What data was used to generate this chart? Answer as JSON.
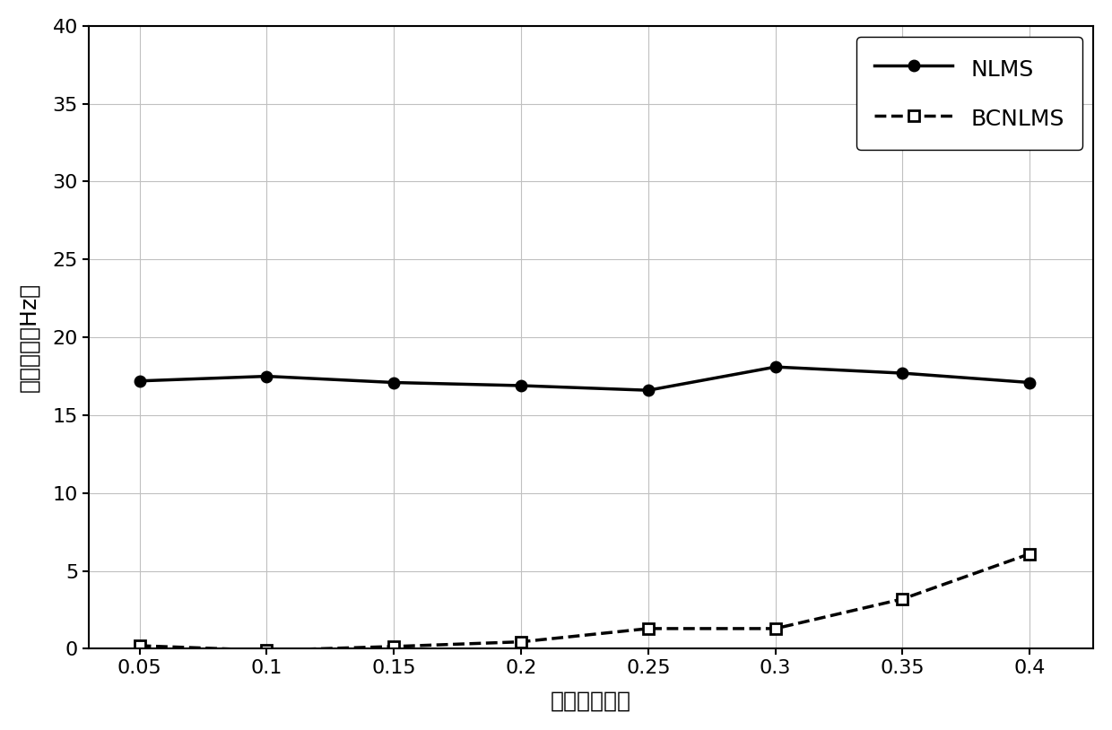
{
  "x": [
    0.05,
    0.1,
    0.15,
    0.2,
    0.25,
    0.3,
    0.35,
    0.4
  ],
  "nlms_y": [
    17.2,
    17.5,
    17.1,
    16.9,
    16.6,
    18.1,
    17.7,
    17.1
  ],
  "bcnlms_y": [
    0.2,
    -0.1,
    0.15,
    0.45,
    1.3,
    1.3,
    3.2,
    6.1
  ],
  "xlabel": "输入噪声方差",
  "ylabel": "频率偏差（Hz）",
  "xlim": [
    0.03,
    0.425
  ],
  "ylim": [
    0,
    40
  ],
  "yticks": [
    0,
    5,
    10,
    15,
    20,
    25,
    30,
    35,
    40
  ],
  "xticks": [
    0.05,
    0.1,
    0.15,
    0.2,
    0.25,
    0.3,
    0.35,
    0.4
  ],
  "nlms_label": "NLMS",
  "bcnlms_label": "BCNLMS",
  "line_color": "#000000",
  "background_color": "#ffffff",
  "grid_color": "#c0c0c0",
  "label_fontsize": 18,
  "tick_fontsize": 16,
  "legend_fontsize": 18,
  "legend_loc": "upper right"
}
